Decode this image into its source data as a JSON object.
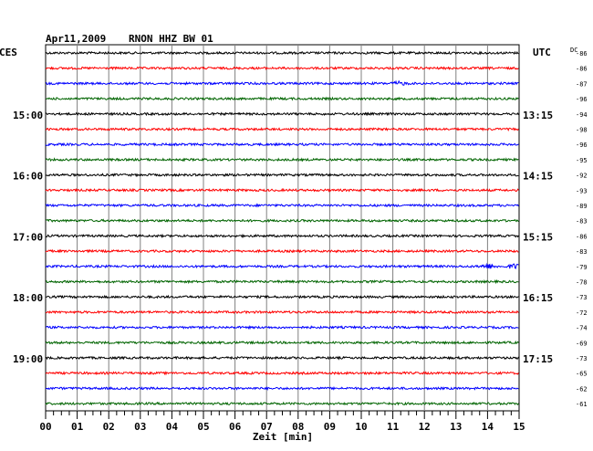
{
  "header": {
    "date": "Apr11,2009",
    "station": "RNON HHZ BW 01",
    "left_zone": "CES",
    "right_zone": "UTC",
    "dc_label": "DC"
  },
  "chart_data": {
    "type": "line",
    "xlabel": "Zeit [min]",
    "xlim": [
      0,
      15
    ],
    "x_ticks": [
      "00",
      "01",
      "02",
      "03",
      "04",
      "05",
      "06",
      "07",
      "08",
      "09",
      "10",
      "11",
      "12",
      "13",
      "14",
      "15"
    ],
    "trace_colors": [
      "#000000",
      "#ff0000",
      "#0000ff",
      "#006400"
    ],
    "left_time_labels": [
      {
        "trace": 4,
        "label": "15:00"
      },
      {
        "trace": 8,
        "label": "16:00"
      },
      {
        "trace": 12,
        "label": "17:00"
      },
      {
        "trace": 16,
        "label": "18:00"
      },
      {
        "trace": 20,
        "label": "19:00"
      }
    ],
    "right_time_labels": [
      {
        "trace": 4,
        "label": "13:15"
      },
      {
        "trace": 8,
        "label": "14:15"
      },
      {
        "trace": 12,
        "label": "15:15"
      },
      {
        "trace": 16,
        "label": "16:15"
      },
      {
        "trace": 20,
        "label": "17:15"
      }
    ],
    "dc_offsets": [
      -86,
      -86,
      -87,
      -96,
      -94,
      -98,
      -96,
      -95,
      -92,
      -93,
      -89,
      -83,
      -86,
      -83,
      -79,
      -78,
      -73,
      -72,
      -74,
      -69,
      -73,
      -65,
      -62,
      -61
    ],
    "events": [
      {
        "trace": 2,
        "minute": 11.2,
        "strength": 1.5
      },
      {
        "trace": 14,
        "minute": 14.0,
        "strength": 2.0
      },
      {
        "trace": 14,
        "minute": 14.9,
        "strength": 2.5
      }
    ]
  }
}
